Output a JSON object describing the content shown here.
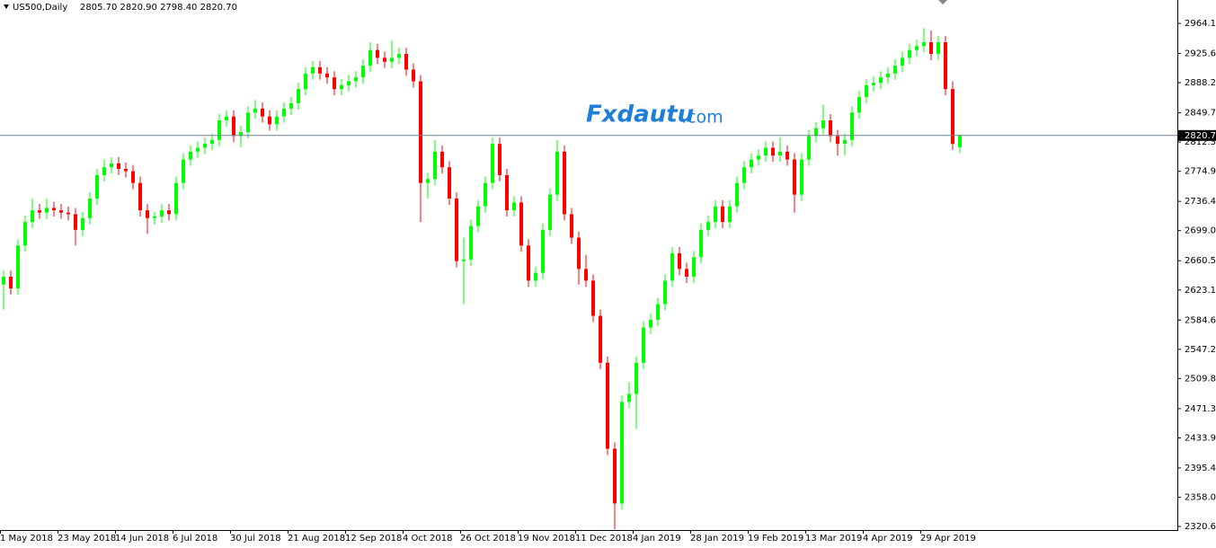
{
  "chart_data": {
    "type": "candlestick",
    "title": "US500,Daily",
    "ohlc_text": "2805.70 2820.90 2798.40 2820.70",
    "watermark": "Fxdautu",
    "watermark_suffix": ".com",
    "up_color": "#00ff00",
    "down_color": "#ff0000",
    "current_price": {
      "value": 2820.7,
      "label": "2820.70"
    },
    "ylim": [
      2316,
      2994
    ],
    "yticks": [
      {
        "value": 2964.1,
        "label": "2964.10"
      },
      {
        "value": 2925.6,
        "label": "2925.60"
      },
      {
        "value": 2888.2,
        "label": "2888.20"
      },
      {
        "value": 2849.7,
        "label": "2849.70"
      },
      {
        "value": 2812.3,
        "label": "2812.30"
      },
      {
        "value": 2774.9,
        "label": "2774.90"
      },
      {
        "value": 2736.4,
        "label": "2736.40"
      },
      {
        "value": 2699,
        "label": "2699.00"
      },
      {
        "value": 2660.5,
        "label": "2660.50"
      },
      {
        "value": 2623.1,
        "label": "2623.10"
      },
      {
        "value": 2584.6,
        "label": "2584.60"
      },
      {
        "value": 2547.2,
        "label": "2547.20"
      },
      {
        "value": 2509.8,
        "label": "2509.80"
      },
      {
        "value": 2471.3,
        "label": "2471.30"
      },
      {
        "value": 2433.9,
        "label": "2433.90"
      },
      {
        "value": 2395.4,
        "label": "2395.40"
      },
      {
        "value": 2358,
        "label": "2358.00"
      },
      {
        "value": 2320.6,
        "label": "2320.60"
      }
    ],
    "categories": [
      "1 May 2018",
      null,
      null,
      null,
      null,
      null,
      null,
      null,
      "23 May 2018",
      null,
      null,
      null,
      null,
      null,
      null,
      null,
      "14 Jun 2018",
      null,
      null,
      null,
      null,
      null,
      null,
      null,
      "6 Jul 2018",
      null,
      null,
      null,
      null,
      null,
      null,
      null,
      "30 Jul 2018",
      null,
      null,
      null,
      null,
      null,
      null,
      null,
      "21 Aug 2018",
      null,
      null,
      null,
      null,
      null,
      null,
      null,
      "12 Sep 2018",
      null,
      null,
      null,
      null,
      null,
      null,
      null,
      "4 Oct 2018",
      null,
      null,
      null,
      null,
      null,
      null,
      null,
      "26 Oct 2018",
      null,
      null,
      null,
      null,
      null,
      null,
      null,
      "19 Nov 2018",
      null,
      null,
      null,
      null,
      null,
      null,
      null,
      "11 Dec 2018",
      null,
      null,
      null,
      null,
      null,
      null,
      null,
      "4 Jan 2019",
      null,
      null,
      null,
      null,
      null,
      null,
      null,
      "28 Jan 2019",
      null,
      null,
      null,
      null,
      null,
      null,
      null,
      "19 Feb 2019",
      null,
      null,
      null,
      null,
      null,
      null,
      null,
      "13 Mar 2019",
      null,
      null,
      null,
      null,
      null,
      null,
      null,
      "4 Apr 2019",
      null,
      null,
      null,
      null,
      null,
      null,
      null,
      "29 Apr 2019",
      null,
      null,
      null,
      null,
      null
    ],
    "candles": [
      [
        2630,
        2648,
        2598,
        2640
      ],
      [
        2640,
        2648,
        2617,
        2625
      ],
      [
        2625,
        2688,
        2617,
        2680
      ],
      [
        2680,
        2718,
        2672,
        2710
      ],
      [
        2710,
        2740,
        2702,
        2725
      ],
      [
        2725,
        2733,
        2714,
        2722
      ],
      [
        2722,
        2740,
        2714,
        2728
      ],
      [
        2728,
        2736,
        2717,
        2725
      ],
      [
        2725,
        2733,
        2714,
        2722
      ],
      [
        2722,
        2730,
        2712,
        2720
      ],
      [
        2720,
        2728,
        2680,
        2700
      ],
      [
        2700,
        2723,
        2692,
        2715
      ],
      [
        2715,
        2748,
        2707,
        2740
      ],
      [
        2740,
        2778,
        2732,
        2770
      ],
      [
        2770,
        2790,
        2762,
        2780
      ],
      [
        2780,
        2793,
        2772,
        2785
      ],
      [
        2785,
        2793,
        2770,
        2778
      ],
      [
        2778,
        2786,
        2767,
        2775
      ],
      [
        2775,
        2783,
        2752,
        2760
      ],
      [
        2760,
        2768,
        2717,
        2725
      ],
      [
        2725,
        2733,
        2695,
        2715
      ],
      [
        2715,
        2723,
        2707,
        2717
      ],
      [
        2717,
        2733,
        2709,
        2725
      ],
      [
        2725,
        2733,
        2712,
        2720
      ],
      [
        2720,
        2768,
        2712,
        2760
      ],
      [
        2760,
        2798,
        2752,
        2790
      ],
      [
        2790,
        2808,
        2782,
        2800
      ],
      [
        2800,
        2813,
        2792,
        2805
      ],
      [
        2805,
        2818,
        2797,
        2810
      ],
      [
        2810,
        2823,
        2802,
        2815
      ],
      [
        2815,
        2848,
        2807,
        2840
      ],
      [
        2840,
        2853,
        2832,
        2845
      ],
      [
        2845,
        2853,
        2812,
        2820
      ],
      [
        2820,
        2833,
        2806,
        2825
      ],
      [
        2825,
        2858,
        2817,
        2850
      ],
      [
        2850,
        2866,
        2842,
        2855
      ],
      [
        2855,
        2863,
        2837,
        2845
      ],
      [
        2845,
        2853,
        2827,
        2835
      ],
      [
        2835,
        2853,
        2827,
        2845
      ],
      [
        2845,
        2863,
        2837,
        2855
      ],
      [
        2855,
        2870,
        2847,
        2862
      ],
      [
        2862,
        2888,
        2854,
        2880
      ],
      [
        2880,
        2908,
        2872,
        2900
      ],
      [
        2900,
        2916,
        2892,
        2908
      ],
      [
        2908,
        2916,
        2892,
        2900
      ],
      [
        2900,
        2908,
        2887,
        2895
      ],
      [
        2895,
        2903,
        2872,
        2880
      ],
      [
        2880,
        2893,
        2872,
        2885
      ],
      [
        2885,
        2898,
        2877,
        2890
      ],
      [
        2890,
        2903,
        2882,
        2895
      ],
      [
        2895,
        2918,
        2887,
        2910
      ],
      [
        2910,
        2940,
        2902,
        2930
      ],
      [
        2930,
        2938,
        2912,
        2920
      ],
      [
        2920,
        2928,
        2907,
        2915
      ],
      [
        2915,
        2942,
        2907,
        2920
      ],
      [
        2920,
        2933,
        2912,
        2925
      ],
      [
        2925,
        2933,
        2897,
        2905
      ],
      [
        2905,
        2913,
        2882,
        2890
      ],
      [
        2890,
        2898,
        2710,
        2760
      ],
      [
        2760,
        2773,
        2740,
        2765
      ],
      [
        2765,
        2815,
        2757,
        2800
      ],
      [
        2800,
        2808,
        2772,
        2780
      ],
      [
        2780,
        2788,
        2732,
        2740
      ],
      [
        2740,
        2748,
        2652,
        2660
      ],
      [
        2660,
        2690,
        2605,
        2662
      ],
      [
        2662,
        2713,
        2654,
        2705
      ],
      [
        2705,
        2738,
        2697,
        2730
      ],
      [
        2730,
        2768,
        2722,
        2760
      ],
      [
        2760,
        2818,
        2752,
        2810
      ],
      [
        2810,
        2818,
        2762,
        2770
      ],
      [
        2770,
        2778,
        2717,
        2725
      ],
      [
        2725,
        2743,
        2717,
        2735
      ],
      [
        2735,
        2743,
        2672,
        2680
      ],
      [
        2680,
        2688,
        2627,
        2635
      ],
      [
        2635,
        2653,
        2627,
        2645
      ],
      [
        2645,
        2708,
        2637,
        2700
      ],
      [
        2700,
        2753,
        2692,
        2745
      ],
      [
        2745,
        2815,
        2737,
        2800
      ],
      [
        2800,
        2808,
        2712,
        2720
      ],
      [
        2720,
        2728,
        2682,
        2690
      ],
      [
        2690,
        2698,
        2630,
        2650
      ],
      [
        2650,
        2668,
        2627,
        2635
      ],
      [
        2635,
        2643,
        2582,
        2590
      ],
      [
        2590,
        2598,
        2522,
        2530
      ],
      [
        2530,
        2538,
        2412,
        2420
      ],
      [
        2420,
        2428,
        2317,
        2350
      ],
      [
        2350,
        2488,
        2342,
        2480
      ],
      [
        2480,
        2505,
        2472,
        2490
      ],
      [
        2490,
        2538,
        2445,
        2530
      ],
      [
        2530,
        2583,
        2522,
        2575
      ],
      [
        2575,
        2593,
        2567,
        2585
      ],
      [
        2585,
        2613,
        2577,
        2605
      ],
      [
        2605,
        2643,
        2597,
        2635
      ],
      [
        2635,
        2678,
        2627,
        2670
      ],
      [
        2670,
        2678,
        2642,
        2650
      ],
      [
        2650,
        2658,
        2632,
        2640
      ],
      [
        2640,
        2673,
        2632,
        2665
      ],
      [
        2665,
        2708,
        2657,
        2700
      ],
      [
        2700,
        2718,
        2692,
        2710
      ],
      [
        2710,
        2738,
        2702,
        2730
      ],
      [
        2730,
        2738,
        2702,
        2710
      ],
      [
        2710,
        2738,
        2702,
        2730
      ],
      [
        2730,
        2768,
        2722,
        2760
      ],
      [
        2760,
        2788,
        2752,
        2780
      ],
      [
        2780,
        2798,
        2772,
        2790
      ],
      [
        2790,
        2803,
        2782,
        2795
      ],
      [
        2795,
        2813,
        2787,
        2805
      ],
      [
        2805,
        2813,
        2787,
        2795
      ],
      [
        2795,
        2818,
        2787,
        2800
      ],
      [
        2800,
        2808,
        2782,
        2790
      ],
      [
        2790,
        2798,
        2722,
        2745
      ],
      [
        2745,
        2798,
        2737,
        2790
      ],
      [
        2790,
        2828,
        2782,
        2820
      ],
      [
        2820,
        2838,
        2812,
        2830
      ],
      [
        2830,
        2860,
        2822,
        2840
      ],
      [
        2840,
        2848,
        2812,
        2820
      ],
      [
        2820,
        2828,
        2795,
        2810
      ],
      [
        2810,
        2823,
        2795,
        2815
      ],
      [
        2815,
        2858,
        2807,
        2850
      ],
      [
        2850,
        2878,
        2842,
        2870
      ],
      [
        2870,
        2893,
        2862,
        2885
      ],
      [
        2885,
        2896,
        2877,
        2888
      ],
      [
        2888,
        2903,
        2880,
        2895
      ],
      [
        2895,
        2908,
        2887,
        2900
      ],
      [
        2900,
        2918,
        2892,
        2910
      ],
      [
        2910,
        2928,
        2902,
        2920
      ],
      [
        2920,
        2938,
        2912,
        2930
      ],
      [
        2930,
        2943,
        2922,
        2935
      ],
      [
        2935,
        2958,
        2927,
        2940
      ],
      [
        2940,
        2955,
        2917,
        2925
      ],
      [
        2925,
        2948,
        2917,
        2940
      ],
      [
        2940,
        2948,
        2872,
        2880
      ],
      [
        2880,
        2890,
        2802,
        2810
      ],
      [
        2805.7,
        2820.9,
        2798.4,
        2820.7
      ]
    ]
  }
}
